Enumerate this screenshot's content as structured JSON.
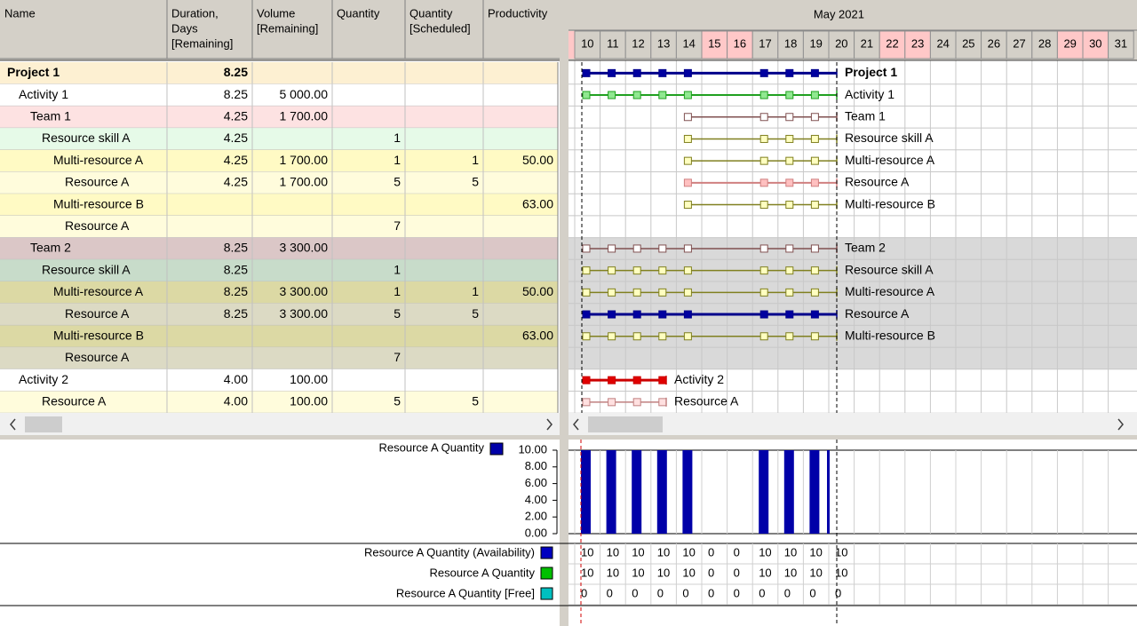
{
  "table": {
    "columns": [
      [
        "Name"
      ],
      [
        "Duration,",
        "Days",
        "[Remaining]"
      ],
      [
        "Volume",
        "[Remaining]"
      ],
      [
        "Quantity"
      ],
      [
        "Quantity",
        "[Scheduled]"
      ],
      [
        "Productivity"
      ]
    ],
    "rows": [
      {
        "name": "Project 1",
        "duration": "8.25"
      },
      {
        "name": "Activity 1",
        "duration": "8.25",
        "volume": "5 000.00"
      },
      {
        "name": "Team 1",
        "duration": "4.25",
        "volume": "1 700.00"
      },
      {
        "name": "Resource skill A",
        "duration": "4.25",
        "quantity": "1"
      },
      {
        "name": "Multi-resource A",
        "duration": "4.25",
        "volume": "1 700.00",
        "quantity": "1",
        "scheduled": "1",
        "productivity": "50.00"
      },
      {
        "name": "Resource A",
        "duration": "4.25",
        "volume": "1 700.00",
        "quantity": "5",
        "scheduled": "5"
      },
      {
        "name": "Multi-resource B",
        "productivity": "63.00"
      },
      {
        "name": "Resource A",
        "quantity": "7"
      },
      {
        "name": "Team 2",
        "duration": "8.25",
        "volume": "3 300.00"
      },
      {
        "name": "Resource skill A",
        "duration": "8.25",
        "quantity": "1"
      },
      {
        "name": "Multi-resource A",
        "duration": "8.25",
        "volume": "3 300.00",
        "quantity": "1",
        "scheduled": "1",
        "productivity": "50.00"
      },
      {
        "name": "Resource A",
        "duration": "8.25",
        "volume": "3 300.00",
        "quantity": "5",
        "scheduled": "5"
      },
      {
        "name": "Multi-resource B",
        "productivity": "63.00"
      },
      {
        "name": "Resource A",
        "quantity": "7"
      },
      {
        "name": "Activity 2",
        "duration": "4.00",
        "volume": "100.00"
      },
      {
        "name": "Resource A",
        "duration": "4.00",
        "volume": "100.00",
        "quantity": "5",
        "scheduled": "5"
      }
    ]
  },
  "gantt": {
    "month": "May 2021",
    "days": [
      10,
      11,
      12,
      13,
      14,
      15,
      16,
      17,
      18,
      19,
      20,
      21,
      22,
      23,
      24,
      25,
      26,
      27,
      28,
      29,
      30,
      31
    ],
    "weekends": [
      15,
      16,
      22,
      23,
      29,
      30
    ]
  },
  "chart_data": {
    "type": "bar",
    "x": [
      10,
      11,
      12,
      13,
      14,
      15,
      16,
      17,
      18,
      19,
      20
    ],
    "series": [
      {
        "name": "Resource A Quantity",
        "color": "#0000a8",
        "values": [
          10,
          10,
          10,
          10,
          10,
          0,
          0,
          10,
          10,
          10,
          10
        ]
      }
    ],
    "ylim": [
      0,
      10
    ],
    "yticks": [
      {
        "value": 0,
        "label": "0.00"
      },
      {
        "value": 2,
        "label": "2.00"
      },
      {
        "value": 4,
        "label": "4.00"
      },
      {
        "value": 6,
        "label": "6.00"
      },
      {
        "value": 8,
        "label": "8.00"
      },
      {
        "value": 10,
        "label": "10.00"
      }
    ]
  },
  "bottom_table": {
    "rows": [
      {
        "name": "Resource A Quantity (Availability)",
        "color": "#0000c0",
        "values": [
          10,
          10,
          10,
          10,
          10,
          0,
          0,
          10,
          10,
          10,
          10
        ]
      },
      {
        "name": "Resource A Quantity",
        "color": "#00c000",
        "values": [
          10,
          10,
          10,
          10,
          10,
          0,
          0,
          10,
          10,
          10,
          10
        ]
      },
      {
        "name": "Resource A Quantity [Free]",
        "color": "#00c0c0",
        "values": [
          0,
          0,
          0,
          0,
          0,
          0,
          0,
          0,
          0,
          0,
          0
        ]
      }
    ]
  }
}
